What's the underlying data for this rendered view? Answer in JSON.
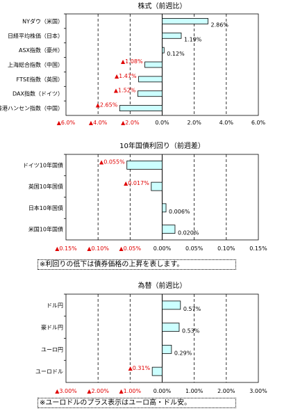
{
  "colors": {
    "bar_fill": "#ccffff",
    "bar_stroke": "#000000",
    "negative": "#e00000",
    "positive": "#000000"
  },
  "chart_data": [
    {
      "type": "bar",
      "orientation": "horizontal",
      "title": "株式（前週比）",
      "categories": [
        "NYダウ（米国）",
        "日経平均株価（日本）",
        "ASX指数（豪州）",
        "上海総合指数（中国）",
        "FTSE指数（英国）",
        "DAX指数（ドイツ）",
        "香港ハンセン指数（中国）"
      ],
      "values": [
        2.86,
        1.19,
        0.12,
        -1.08,
        -1.47,
        -1.52,
        -2.65
      ],
      "data_labels": [
        "2.86%",
        "1.19%",
        "0.12%",
        "▲1.08%",
        "▲1.47%",
        "▲1.52%",
        "▲2.65%"
      ],
      "xlim": [
        -6,
        6
      ],
      "ticks": [
        -6,
        -4,
        -2,
        0,
        2,
        4,
        6
      ],
      "tick_labels": [
        "▲6.0%",
        "▲4.0%",
        "▲2.0%",
        "0.0%",
        "2.0%",
        "4.0%",
        "6.0%"
      ],
      "grid": "dashed vertical",
      "note": ""
    },
    {
      "type": "bar",
      "orientation": "horizontal",
      "title": "10年国債利回り（前週差）",
      "categories": [
        "ドイツ10年国債",
        "英国10年国債",
        "日本10年国債",
        "米国10年国債"
      ],
      "values": [
        -0.055,
        -0.017,
        0.006,
        0.02
      ],
      "data_labels": [
        "▲0.055%",
        "▲0.017%",
        "0.006%",
        "0.020%"
      ],
      "xlim": [
        -0.15,
        0.15
      ],
      "ticks": [
        -0.15,
        -0.1,
        -0.05,
        0,
        0.05,
        0.1,
        0.15
      ],
      "tick_labels": [
        "▲0.15%",
        "▲0.10%",
        "▲0.05%",
        "0.00%",
        "0.05%",
        "0.10%",
        "0.15%"
      ],
      "grid": "dashed vertical",
      "note": "※利回りの低下は債券価格の上昇を表します。"
    },
    {
      "type": "bar",
      "orientation": "horizontal",
      "title": "為替（前週比）",
      "categories": [
        "ドル円",
        "豪ドル円",
        "ユーロ円",
        "ユーロドル"
      ],
      "values": [
        0.57,
        0.53,
        0.29,
        -0.31
      ],
      "data_labels": [
        "0.57%",
        "0.53%",
        "0.29%",
        "▲0.31%"
      ],
      "xlim": [
        -3,
        3
      ],
      "ticks": [
        -3,
        -2,
        -1,
        0,
        1,
        2,
        3
      ],
      "tick_labels": [
        "▲3.00%",
        "▲2.00%",
        "▲1.00%",
        "0.00%",
        "1.00%",
        "2.00%",
        "3.00%"
      ],
      "grid": "dashed vertical",
      "note": "※ユーロドルのプラス表示はユーロ高・ドル安。"
    }
  ]
}
